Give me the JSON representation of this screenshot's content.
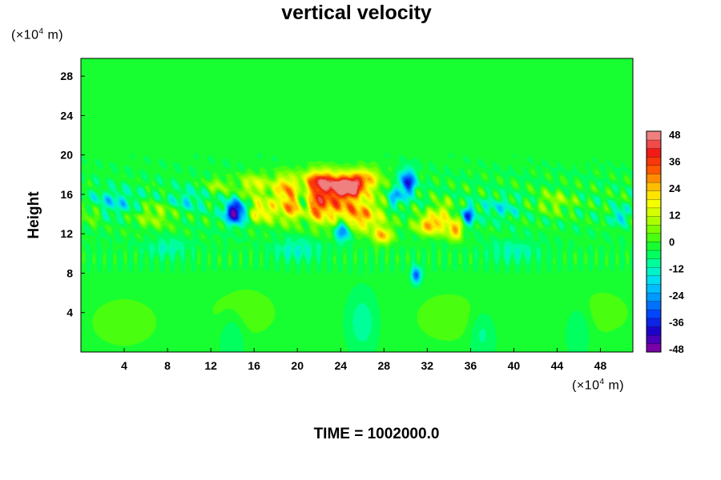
{
  "chart_data": {
    "type": "heatmap",
    "title": "vertical velocity",
    "ylabel": "Height",
    "xlabel": "",
    "x_unit": {
      "prefix": "(×10",
      "exp": "4",
      "suffix": " m)"
    },
    "y_unit": {
      "prefix": "(×10",
      "exp": "4",
      "suffix": " m)"
    },
    "x_range": [
      0,
      51
    ],
    "y_range": [
      0,
      29.8
    ],
    "x_ticks": [
      4,
      8,
      12,
      16,
      20,
      24,
      28,
      32,
      36,
      40,
      44,
      48
    ],
    "y_ticks": [
      4,
      8,
      12,
      16,
      20,
      24,
      28
    ],
    "colorbar": {
      "range": [
        -48,
        48
      ],
      "ticks": [
        48,
        36,
        24,
        12,
        0,
        -12,
        -24,
        -36,
        -48
      ],
      "levels": 26
    },
    "colormap": [
      "#7a00a8",
      "#1e00c8",
      "#0040ff",
      "#0090ff",
      "#00d8ff",
      "#00ffb0",
      "#00ff40",
      "#60ff00",
      "#c0ff00",
      "#ffff00",
      "#ffb400",
      "#ff5000",
      "#f01818",
      "#f08080"
    ],
    "features": [
      {
        "x": 22.7,
        "y": 15.4,
        "sx": 2.8,
        "sy": 1.6,
        "v": 30
      },
      {
        "x": 24.6,
        "y": 16.8,
        "sx": 0.9,
        "sy": 0.7,
        "v": 44
      },
      {
        "x": 22.2,
        "y": 17.3,
        "sx": 1.1,
        "sy": 0.8,
        "v": 32
      },
      {
        "x": 20.4,
        "y": 14.6,
        "sx": 1.2,
        "sy": 0.9,
        "v": 22
      },
      {
        "x": 25.9,
        "y": 13.6,
        "sx": 1.4,
        "sy": 1.0,
        "v": 20
      },
      {
        "x": 26.2,
        "y": 17.6,
        "sx": 1.0,
        "sy": 0.8,
        "v": 22
      },
      {
        "x": 16.6,
        "y": 14.3,
        "sx": 1.0,
        "sy": 0.8,
        "v": 20
      },
      {
        "x": 16.0,
        "y": 17.0,
        "sx": 1.0,
        "sy": 0.8,
        "v": 16
      },
      {
        "x": 18.8,
        "y": 16.8,
        "sx": 0.6,
        "sy": 0.9,
        "v": 20
      },
      {
        "x": 14.3,
        "y": 14.2,
        "sx": 0.7,
        "sy": 0.8,
        "v": -44
      },
      {
        "x": 20.6,
        "y": 15.0,
        "sx": 0.4,
        "sy": 1.2,
        "v": -40
      },
      {
        "x": 24.2,
        "y": 12.4,
        "sx": 0.5,
        "sy": 0.8,
        "v": -30
      },
      {
        "x": 30.2,
        "y": 17.2,
        "sx": 0.5,
        "sy": 0.9,
        "v": -34
      },
      {
        "x": 29.0,
        "y": 15.6,
        "sx": 0.5,
        "sy": 0.7,
        "v": -20
      },
      {
        "x": 31.0,
        "y": 7.8,
        "sx": 0.3,
        "sy": 0.6,
        "v": -28
      },
      {
        "x": 27.9,
        "y": 11.8,
        "sx": 0.6,
        "sy": 0.6,
        "v": 26
      },
      {
        "x": 32.4,
        "y": 12.9,
        "sx": 1.0,
        "sy": 0.7,
        "v": 30
      },
      {
        "x": 34.6,
        "y": 12.4,
        "sx": 0.5,
        "sy": 0.7,
        "v": 28
      },
      {
        "x": 35.8,
        "y": 13.8,
        "sx": 0.4,
        "sy": 0.7,
        "v": -28
      },
      {
        "x": 33.4,
        "y": 14.4,
        "sx": 0.7,
        "sy": 0.7,
        "v": 14
      },
      {
        "x": 12.7,
        "y": 16.9,
        "sx": 0.8,
        "sy": 0.6,
        "v": 10
      },
      {
        "x": 38.7,
        "y": 14.6,
        "sx": 1.2,
        "sy": 0.8,
        "v": -10
      },
      {
        "x": 43.8,
        "y": 15.2,
        "sx": 1.2,
        "sy": 0.8,
        "v": 10
      },
      {
        "x": 3.2,
        "y": 15.2,
        "sx": 1.6,
        "sy": 0.9,
        "v": -12
      },
      {
        "x": 6.8,
        "y": 13.9,
        "sx": 1.4,
        "sy": 0.9,
        "v": 11
      },
      {
        "x": 9.8,
        "y": 15.4,
        "sx": 1.2,
        "sy": 0.8,
        "v": -10
      },
      {
        "x": 1.0,
        "y": 14.0,
        "sx": 0.6,
        "sy": 0.6,
        "v": 10
      },
      {
        "x": 49.8,
        "y": 13.8,
        "sx": 0.4,
        "sy": 0.6,
        "v": -18
      },
      {
        "x": 8.0,
        "y": 10.6,
        "sx": 1.4,
        "sy": 0.7,
        "v": -8
      },
      {
        "x": 20.0,
        "y": 10.4,
        "sx": 1.5,
        "sy": 0.8,
        "v": -10
      },
      {
        "x": 40.0,
        "y": 10.2,
        "sx": 1.6,
        "sy": 0.8,
        "v": -8
      },
      {
        "x": 14.0,
        "y": 2.0,
        "sx": 0.8,
        "sy": 1.6,
        "v": -7
      },
      {
        "x": 26.0,
        "y": 3.0,
        "sx": 0.8,
        "sy": 1.8,
        "v": -8
      },
      {
        "x": 37.0,
        "y": 2.0,
        "sx": 0.8,
        "sy": 1.6,
        "v": -7
      },
      {
        "x": 46.0,
        "y": 2.6,
        "sx": 0.8,
        "sy": 1.6,
        "v": -7
      },
      {
        "x": 4.0,
        "y": 3.0,
        "sx": 2.5,
        "sy": 2.0,
        "v": 6
      },
      {
        "x": 15.0,
        "y": 4.0,
        "sx": 2.5,
        "sy": 2.0,
        "v": 6
      },
      {
        "x": 34.0,
        "y": 3.5,
        "sx": 2.5,
        "sy": 2.0,
        "v": 6
      },
      {
        "x": 48.0,
        "y": 4.0,
        "sx": 2.5,
        "sy": 2.0,
        "v": 5
      }
    ]
  },
  "time_label": "TIME = 1002000.0"
}
